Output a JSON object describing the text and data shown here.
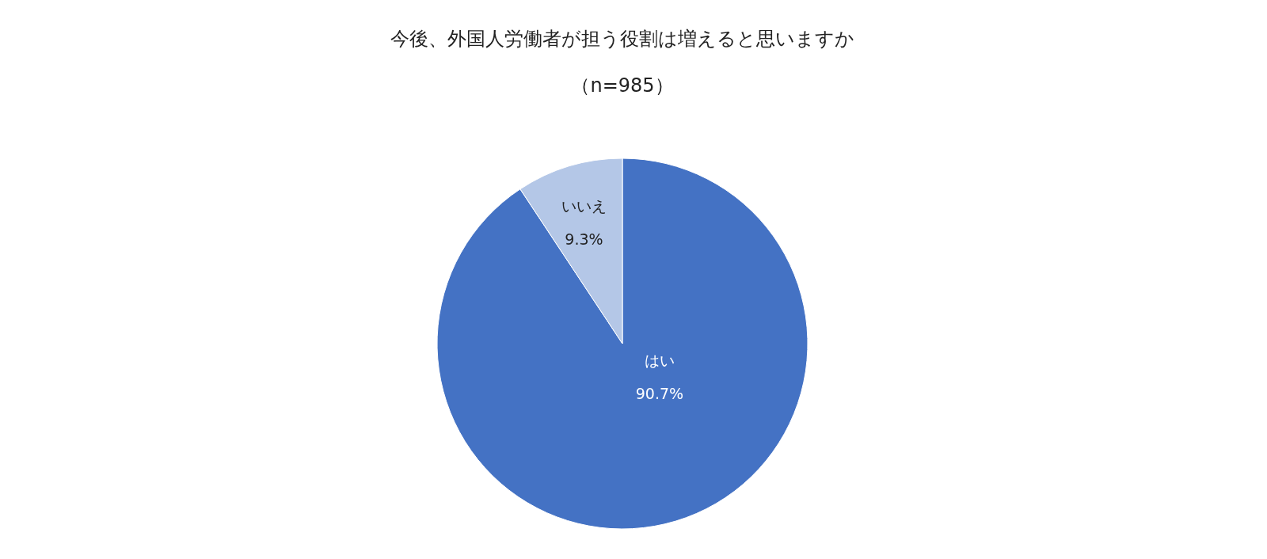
{
  "chart_data": {
    "type": "pie",
    "title": "今後、外国人労働者が担う役割は増えると思いますか",
    "subtitle": "（n=985）",
    "categories": [
      "はい",
      "いいえ"
    ],
    "values": [
      90.7,
      9.3
    ],
    "colors": [
      "#4472c4",
      "#b4c7e7"
    ],
    "value_labels": [
      "90.7%",
      "9.3%"
    ],
    "legend": false
  }
}
